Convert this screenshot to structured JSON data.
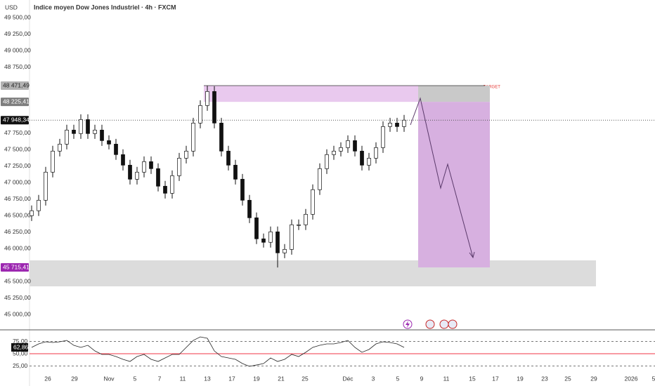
{
  "chart_data": [
    {
      "type": "candlestick",
      "title": "Indice moyen Dow Jones Industriel · 4h · FXCM",
      "currency": "USD",
      "open": [
        46500,
        46575,
        46734,
        47160,
        47479,
        47585,
        47798,
        47745,
        47957,
        47745,
        47798,
        47638,
        47585,
        47426,
        47266,
        47053,
        47160,
        47319,
        47213,
        46947,
        46840,
        47106,
        47372,
        47479,
        47904,
        48170,
        48383,
        47904,
        47479,
        47266,
        47053,
        46734,
        46468,
        46149,
        46096,
        46255,
        45936,
        45989,
        46362,
        46362,
        46521,
        46894,
        47213,
        47426,
        47479,
        47532,
        47638,
        47479,
        47266,
        47372,
        47532,
        47851,
        47904,
        47851
      ],
      "high": [
        46655,
        46814,
        47240,
        47559,
        47665,
        47878,
        47878,
        48037,
        48037,
        47878,
        47878,
        47718,
        47665,
        47506,
        47346,
        47240,
        47399,
        47399,
        47293,
        47027,
        47186,
        47452,
        47559,
        47984,
        48250,
        48471,
        48463,
        47984,
        47559,
        47346,
        47133,
        46814,
        46548,
        46229,
        46335,
        46335,
        46069,
        46442,
        46442,
        46601,
        46974,
        47293,
        47506,
        47559,
        47612,
        47718,
        47718,
        47559,
        47452,
        47612,
        47931,
        47984,
        47984,
        48028
      ],
      "low": [
        46420,
        46495,
        46654,
        47080,
        47399,
        47505,
        47665,
        47665,
        47665,
        47665,
        47558,
        47505,
        47346,
        47186,
        46973,
        46973,
        47080,
        47133,
        46867,
        46760,
        46760,
        47026,
        47292,
        47399,
        47824,
        48090,
        47824,
        47399,
        47186,
        46973,
        46654,
        46388,
        46069,
        46016,
        46016,
        45715,
        45856,
        45909,
        46282,
        46282,
        46441,
        46814,
        47133,
        47346,
        47399,
        47452,
        47399,
        47186,
        47186,
        47292,
        47452,
        47771,
        47771,
        47771
      ],
      "close": [
        46575,
        46734,
        47160,
        47479,
        47585,
        47798,
        47745,
        47957,
        47745,
        47798,
        47638,
        47585,
        47426,
        47266,
        47053,
        47160,
        47319,
        47213,
        46947,
        46840,
        47106,
        47372,
        47479,
        47904,
        48170,
        48383,
        47904,
        47479,
        47266,
        47053,
        46734,
        46468,
        46149,
        46096,
        46255,
        45936,
        45989,
        46362,
        46362,
        46521,
        46894,
        47213,
        47426,
        47479,
        47532,
        47638,
        47479,
        47266,
        47372,
        47532,
        47851,
        47904,
        47851,
        47948
      ],
      "up_color": "#ffffff",
      "down_color": "#111111",
      "ylim": [
        44790,
        49770
      ],
      "yticks": [
        {
          "value": 49500,
          "label": "49 500,00"
        },
        {
          "value": 49250,
          "label": "49 250,00"
        },
        {
          "value": 49000,
          "label": "49 000,00"
        },
        {
          "value": 48750,
          "label": "48 750,00"
        },
        {
          "value": 47750,
          "label": "47 750,00"
        },
        {
          "value": 47500,
          "label": "47 500,00"
        },
        {
          "value": 47250,
          "label": "47 250,00"
        },
        {
          "value": 47000,
          "label": "47 000,00"
        },
        {
          "value": 46750,
          "label": "46 750,00"
        },
        {
          "value": 46500,
          "label": "46 500,00"
        },
        {
          "value": 46250,
          "label": "46 250,00"
        },
        {
          "value": 46000,
          "label": "46 000,00"
        },
        {
          "value": 45500,
          "label": "45 500,00"
        },
        {
          "value": 45250,
          "label": "45 250,00"
        },
        {
          "value": 45000,
          "label": "45 000,00"
        }
      ],
      "xlim": [
        -0.3,
        88.7
      ],
      "xticks": [
        {
          "value": 2.3,
          "label": "26"
        },
        {
          "value": 6.1,
          "label": "29"
        },
        {
          "value": 11,
          "label": "Nov"
        },
        {
          "value": 14.7,
          "label": "5"
        },
        {
          "value": 18.2,
          "label": "7"
        },
        {
          "value": 21.5,
          "label": "11"
        },
        {
          "value": 25,
          "label": "13"
        },
        {
          "value": 28.5,
          "label": "17"
        },
        {
          "value": 32,
          "label": "19"
        },
        {
          "value": 35.5,
          "label": "21"
        },
        {
          "value": 38.9,
          "label": "25"
        },
        {
          "value": 45,
          "label": "Déc"
        },
        {
          "value": 48.6,
          "label": "3"
        },
        {
          "value": 52.1,
          "label": "5"
        },
        {
          "value": 55.5,
          "label": "9"
        },
        {
          "value": 59,
          "label": "11"
        },
        {
          "value": 62.7,
          "label": "15"
        },
        {
          "value": 66,
          "label": "17"
        },
        {
          "value": 69.5,
          "label": "19"
        },
        {
          "value": 73,
          "label": "23"
        },
        {
          "value": 76.3,
          "label": "25"
        },
        {
          "value": 80,
          "label": "29"
        },
        {
          "value": 85.3,
          "label": "2026"
        },
        {
          "value": 88.5,
          "label": "5"
        }
      ],
      "price_labels": [
        {
          "value": 48471.49,
          "label": "48 471,49",
          "color": "#b2b2b2",
          "text_color": "#222222"
        },
        {
          "value": 48225.41,
          "label": "48 225,41",
          "color": "#7d7d7d",
          "text_color": "#ffffff"
        },
        {
          "value": 47948.34,
          "label": "47 948,34",
          "color": "#111111",
          "text_color": "#ffffff"
        },
        {
          "value": 45715.41,
          "label": "45 715,41",
          "color": "#9c27b0",
          "text_color": "#ffffff"
        }
      ],
      "annotation": "TARGET"
    },
    {
      "type": "line",
      "values": [
        62.9,
        70,
        74.3,
        72.9,
        74.3,
        77.1,
        67.1,
        62.9,
        67.1,
        55.7,
        48.6,
        48.6,
        44.3,
        38.6,
        34.3,
        44.3,
        48.6,
        38.6,
        34.3,
        41.4,
        48.6,
        48.6,
        62.9,
        77.1,
        84.3,
        81.4,
        55.7,
        44.3,
        41.4,
        38.6,
        30,
        24.3,
        27.1,
        30,
        41.4,
        34.3,
        38.6,
        48.6,
        44.3,
        52.9,
        62.9,
        67.1,
        70,
        70,
        72.9,
        77.1,
        62.9,
        52.9,
        58.6,
        70,
        74.3,
        72.9,
        70,
        62.86
      ],
      "last_value_label": "62,86",
      "color": "#222222",
      "reference_color": "#f23645",
      "ylim": [
        12.9,
        95.7
      ],
      "yticks": [
        {
          "value": 75,
          "label": "75,00"
        },
        {
          "value": 50,
          "label": "50,00"
        },
        {
          "value": 25,
          "label": "25,00"
        }
      ]
    }
  ]
}
